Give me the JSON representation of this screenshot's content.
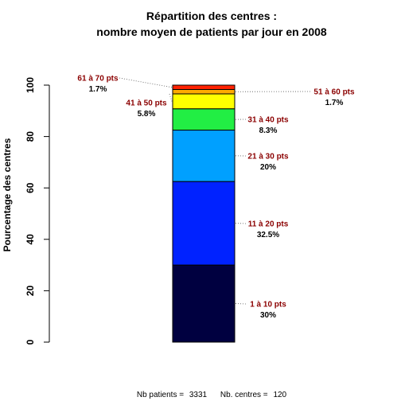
{
  "chart_data": {
    "type": "bar",
    "title_line1": "Répartition des centres :",
    "title_line2": "nombre moyen de patients par jour en 2008",
    "ylabel": "Pourcentage des centres",
    "xlabel": "",
    "ylim": [
      0,
      100
    ],
    "yticks": [
      "0",
      "20",
      "40",
      "60",
      "80",
      "100"
    ],
    "grid": false,
    "stacked": true,
    "series": [
      {
        "name": "1 à 10 pts",
        "value": 30,
        "label": "30%",
        "color": "#000040"
      },
      {
        "name": "11 à 20 pts",
        "value": 32.5,
        "label": "32.5%",
        "color": "#0022ff"
      },
      {
        "name": "21 à 30 pts",
        "value": 20,
        "label": "20%",
        "color": "#00a0ff"
      },
      {
        "name": "31 à 40 pts",
        "value": 8.3,
        "label": "8.3%",
        "color": "#22ee44"
      },
      {
        "name": "41 à 50 pts",
        "value": 5.8,
        "label": "5.8%",
        "color": "#ffff00"
      },
      {
        "name": "51 à 60 pts",
        "value": 1.7,
        "label": "1.7%",
        "color": "#ffaa00"
      },
      {
        "name": "61 à 70 pts",
        "value": 1.7,
        "label": "1.7%",
        "color": "#ff2200"
      }
    ]
  },
  "footer": {
    "patients_label": "Nb patients =",
    "patients_value": "3331",
    "centres_label": "Nb. centres =",
    "centres_value": "120"
  }
}
